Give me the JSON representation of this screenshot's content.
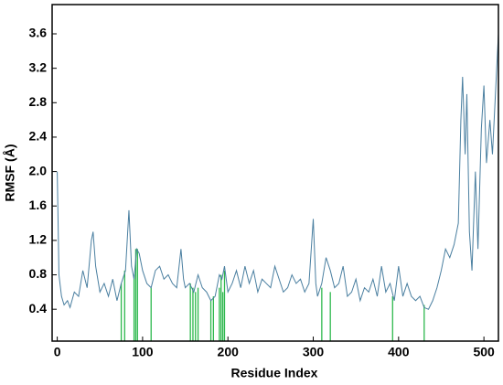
{
  "chart_data": {
    "type": "line",
    "x_label": "Residue Index",
    "y_label": "RMSF (Å)",
    "xlim": [
      -6,
      517
    ],
    "ylim": [
      0.03,
      3.94
    ],
    "xticks": [
      0,
      100,
      200,
      300,
      400,
      500
    ],
    "yticks": [
      0.4,
      0.8,
      1.2,
      1.6,
      {
        "value": 2,
        "label": "2.0"
      },
      2.4,
      2.8,
      3.2,
      3.6
    ],
    "color": "#4a7fa0",
    "x": [
      0,
      2,
      5,
      8,
      12,
      15,
      20,
      25,
      30,
      35,
      40,
      42,
      45,
      50,
      55,
      60,
      65,
      70,
      75,
      80,
      84,
      87,
      90,
      93,
      96,
      100,
      105,
      110,
      115,
      120,
      125,
      130,
      135,
      140,
      145,
      148,
      150,
      155,
      160,
      165,
      170,
      175,
      180,
      185,
      190,
      193,
      196,
      200,
      205,
      210,
      215,
      220,
      225,
      230,
      235,
      240,
      245,
      250,
      255,
      260,
      265,
      270,
      275,
      280,
      285,
      290,
      295,
      300,
      303,
      305,
      310,
      315,
      320,
      325,
      330,
      335,
      340,
      345,
      350,
      355,
      360,
      365,
      370,
      375,
      380,
      385,
      390,
      395,
      400,
      405,
      410,
      415,
      420,
      425,
      430,
      435,
      440,
      445,
      450,
      455,
      460,
      465,
      470,
      473,
      475,
      478,
      480,
      483,
      486,
      490,
      493,
      497,
      500,
      503,
      507,
      510,
      515,
      517
    ],
    "values": [
      2.0,
      0.8,
      0.55,
      0.45,
      0.5,
      0.42,
      0.6,
      0.55,
      0.85,
      0.65,
      1.2,
      1.3,
      0.9,
      0.6,
      0.7,
      0.55,
      0.75,
      0.5,
      0.7,
      0.85,
      1.55,
      0.9,
      0.75,
      1.1,
      1.05,
      0.85,
      0.7,
      0.65,
      0.85,
      0.9,
      0.75,
      0.8,
      0.7,
      0.65,
      1.1,
      0.75,
      0.65,
      0.7,
      0.6,
      0.8,
      0.65,
      0.6,
      0.5,
      0.55,
      0.8,
      0.75,
      0.9,
      0.6,
      0.7,
      0.85,
      0.65,
      0.9,
      0.7,
      0.85,
      0.6,
      0.75,
      0.7,
      0.65,
      0.9,
      0.75,
      0.6,
      0.65,
      0.8,
      0.7,
      0.75,
      0.6,
      0.7,
      1.45,
      0.7,
      0.55,
      0.7,
      1.0,
      0.85,
      0.65,
      0.7,
      0.9,
      0.55,
      0.6,
      0.75,
      0.5,
      0.65,
      0.6,
      0.75,
      0.55,
      0.9,
      0.6,
      0.7,
      0.5,
      0.9,
      0.55,
      0.7,
      0.55,
      0.5,
      0.55,
      0.42,
      0.4,
      0.5,
      0.65,
      0.85,
      1.1,
      1.0,
      1.15,
      1.4,
      2.6,
      3.1,
      2.2,
      2.9,
      1.3,
      0.85,
      2.0,
      1.1,
      2.5,
      3.0,
      2.1,
      2.6,
      2.2,
      3.2,
      3.6
    ],
    "highlights": {
      "color": "#2db84d",
      "x": [
        75,
        79,
        90,
        92,
        94,
        110,
        156,
        159,
        162,
        165,
        180,
        183,
        190,
        192,
        194,
        196,
        310,
        320,
        393,
        430
      ],
      "values": [
        0.7,
        0.85,
        0.8,
        1.1,
        1.1,
        0.65,
        0.7,
        0.65,
        0.6,
        0.65,
        0.5,
        0.55,
        0.65,
        0.8,
        0.6,
        0.85,
        0.65,
        0.6,
        0.55,
        0.45
      ]
    }
  }
}
